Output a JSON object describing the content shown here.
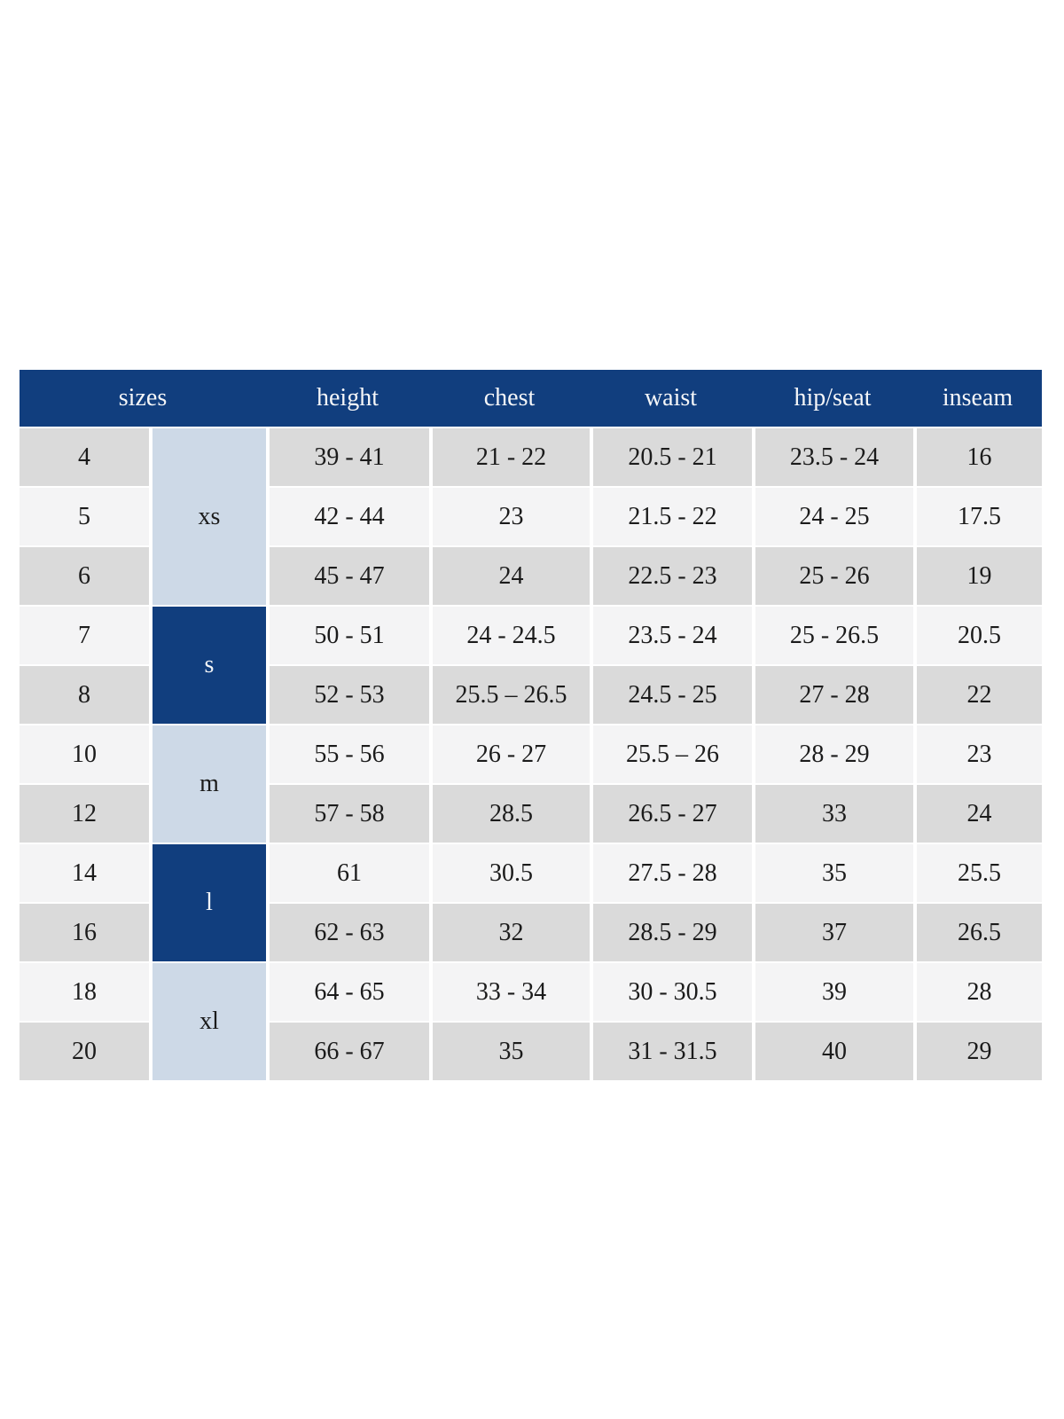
{
  "table": {
    "headers": {
      "sizes": "sizes",
      "height": "height",
      "chest": "chest",
      "waist": "waist",
      "hip_seat": "hip/seat",
      "inseam": "inseam"
    },
    "size_groups": [
      {
        "label": "xs",
        "row_span": 3,
        "variant": "light"
      },
      {
        "label": "s",
        "row_span": 2,
        "variant": "dark"
      },
      {
        "label": "m",
        "row_span": 2,
        "variant": "light"
      },
      {
        "label": "l",
        "row_span": 2,
        "variant": "dark"
      },
      {
        "label": "xl",
        "row_span": 2,
        "variant": "light"
      }
    ],
    "rows": [
      {
        "size": "4",
        "height": "39 - 41",
        "chest": "21 - 22",
        "waist": "20.5 - 21",
        "hip_seat": "23.5 - 24",
        "inseam": "16"
      },
      {
        "size": "5",
        "height": "42 - 44",
        "chest": "23",
        "waist": "21.5 - 22",
        "hip_seat": "24 - 25",
        "inseam": "17.5"
      },
      {
        "size": "6",
        "height": "45 - 47",
        "chest": "24",
        "waist": "22.5 - 23",
        "hip_seat": "25 - 26",
        "inseam": "19"
      },
      {
        "size": "7",
        "height": "50 - 51",
        "chest": "24 - 24.5",
        "waist": "23.5 - 24",
        "hip_seat": "25 - 26.5",
        "inseam": "20.5"
      },
      {
        "size": "8",
        "height": "52 - 53",
        "chest": "25.5 – 26.5",
        "waist": "24.5 - 25",
        "hip_seat": "27 - 28",
        "inseam": "22"
      },
      {
        "size": "10",
        "height": "55 - 56",
        "chest": "26 - 27",
        "waist": "25.5 – 26",
        "hip_seat": "28 - 29",
        "inseam": "23"
      },
      {
        "size": "12",
        "height": "57 - 58",
        "chest": "28.5",
        "waist": "26.5 - 27",
        "hip_seat": "33",
        "inseam": "24"
      },
      {
        "size": "14",
        "height": "61",
        "chest": "30.5",
        "waist": "27.5 - 28",
        "hip_seat": "35",
        "inseam": "25.5"
      },
      {
        "size": "16",
        "height": "62 - 63",
        "chest": "32",
        "waist": "28.5 - 29",
        "hip_seat": "37",
        "inseam": "26.5"
      },
      {
        "size": "18",
        "height": "64 - 65",
        "chest": "33 - 34",
        "waist": "30 - 30.5",
        "hip_seat": "39",
        "inseam": "28"
      },
      {
        "size": "20",
        "height": "66 - 67",
        "chest": "35",
        "waist": "31 - 31.5",
        "hip_seat": "40",
        "inseam": "29"
      }
    ],
    "colors": {
      "header_bg": "#113e7e",
      "header_text": "#f5f6f8",
      "group_light_bg": "#cdd9e7",
      "group_dark_bg": "#113e7e",
      "row_even_bg": "#dadada",
      "row_odd_bg": "#f4f4f5",
      "body_text": "#1b1b1b",
      "gap": "#ffffff"
    }
  }
}
